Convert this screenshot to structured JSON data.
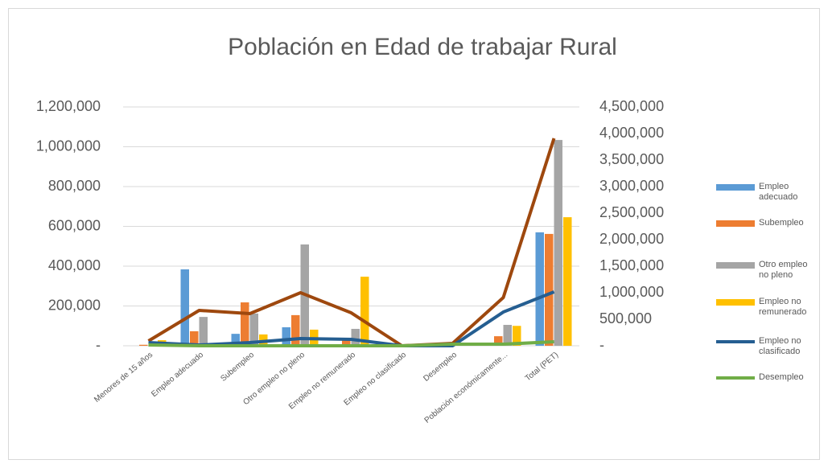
{
  "chart_data": {
    "type": "bar-line",
    "title": "Población en Edad de trabajar  Rural",
    "categories": [
      "Menores de 15 años",
      "Empleo adecuado",
      "Subempleo",
      "Otro empleo no pleno",
      "Empleo no remunerado",
      "Empleo no clasificado",
      "Desempleo",
      "Población económicamente...",
      "Total (PET)"
    ],
    "series": [
      {
        "name": "Empleo adecuado",
        "color": "#5b9bd5",
        "kind": "bar",
        "values": [
          0,
          384000,
          60000,
          93000,
          5000,
          0,
          0,
          0,
          570000
        ]
      },
      {
        "name": "Subempleo",
        "color": "#ed7d31",
        "kind": "bar",
        "values": [
          5000,
          73000,
          218000,
          154000,
          40000,
          0,
          0,
          48000,
          562000
        ]
      },
      {
        "name": "Otro empleo no pleno",
        "color": "#a5a5a5",
        "kind": "bar",
        "values": [
          0,
          145000,
          162000,
          509000,
          85000,
          0,
          0,
          105000,
          1034000
        ]
      },
      {
        "name": "Empleo no remunerado",
        "color": "#ffc000",
        "kind": "bar",
        "values": [
          28000,
          0,
          57000,
          81000,
          347000,
          0,
          0,
          100000,
          646000
        ]
      },
      {
        "color": "#9e480e",
        "kind": "line",
        "axis": "y2",
        "values": [
          91000,
          667000,
          606000,
          1000000,
          621000,
          0,
          45000,
          909000,
          3909000
        ]
      },
      {
        "name": "Empleo no clasificado",
        "color": "#255e91",
        "kind": "line",
        "axis": "y2",
        "values": [
          60000,
          15000,
          60000,
          136000,
          121000,
          0,
          0,
          636000,
          1015000
        ]
      },
      {
        "name": "Desempleo",
        "color": "#70ad47",
        "kind": "line",
        "axis": "y2",
        "values": [
          15000,
          0,
          0,
          0,
          0,
          0,
          30000,
          30000,
          76000
        ]
      }
    ],
    "ylim": [
      0,
      1200000
    ],
    "yticks": [
      {
        "value": 0,
        "label": "-"
      },
      {
        "value": 200000,
        "label": "200,000"
      },
      {
        "value": 400000,
        "label": "400,000"
      },
      {
        "value": 600000,
        "label": "600,000"
      },
      {
        "value": 800000,
        "label": "800,000"
      },
      {
        "value": 1000000,
        "label": "1,000,000"
      },
      {
        "value": 1200000,
        "label": "1,200,000"
      }
    ],
    "y2lim": [
      0,
      4500000
    ],
    "y2ticks": [
      {
        "value": 0,
        "label": "-"
      },
      {
        "value": 500000,
        "label": "500,000"
      },
      {
        "value": 1000000,
        "label": "1,000,000"
      },
      {
        "value": 1500000,
        "label": "1,500,000"
      },
      {
        "value": 2000000,
        "label": "2,000,000"
      },
      {
        "value": 2500000,
        "label": "2,500,000"
      },
      {
        "value": 3000000,
        "label": "3,000,000"
      },
      {
        "value": 3500000,
        "label": "3,500,000"
      },
      {
        "value": 4000000,
        "label": "4,000,000"
      },
      {
        "value": 4500000,
        "label": "4,500,000"
      }
    ],
    "grid": true,
    "legend": "right"
  }
}
